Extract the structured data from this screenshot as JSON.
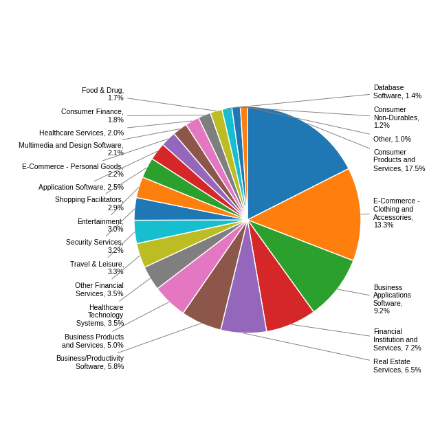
{
  "chart_data": {
    "type": "pie",
    "labels": [
      "Consumer\nProducts and\nServices, 17.5%",
      "E-Commerce -\nClothing and\nAccessories,\n13.3%",
      "Business\nApplications\nSoftware,\n9.2%",
      "Financial\nInstitution and\nServices, 7.2%",
      "Real Estate\nServices, 6.5%",
      "Business/Productivity\nSoftware, 5.8%",
      "Business Products\nand Services, 5.0%",
      "Healthcare\nTechnology\nSystems, 3.5%",
      "Other Financial\nServices, 3.5%",
      "Travel & Leisure,\n3.3%",
      "Security Services,\n3.2%",
      "Entertainment,\n3.0%",
      "Shopping Facilitators,\n2.9%",
      "Application Software, 2.5%",
      "E-Commerce - Personal Goods,\n2.2%",
      "Multimedia and Design Software,\n2.1%",
      "Healthcare Services, 2.0%",
      "Consumer Finance,\n1.8%",
      "Food & Drug,\n1.7%",
      "Database\nSoftware, 1.4%",
      "Consumer\nNon-Durables,\n1.2%",
      "Other, 1.0%"
    ],
    "values": [
      17.5,
      13.3,
      9.2,
      7.2,
      6.5,
      5.8,
      5.0,
      3.5,
      3.5,
      3.3,
      3.2,
      3.0,
      2.9,
      2.5,
      2.2,
      2.1,
      2.0,
      1.8,
      1.7,
      1.4,
      1.2,
      1.0
    ]
  }
}
